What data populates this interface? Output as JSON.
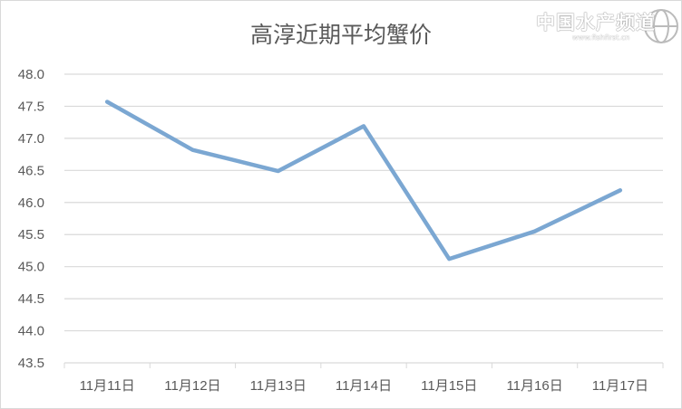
{
  "chart_data": {
    "type": "line",
    "title": "高淳近期平均蟹价",
    "categories": [
      "11月11日",
      "11月12日",
      "11月13日",
      "11月14日",
      "11月15日",
      "11月16日",
      "11月17日"
    ],
    "series": [
      {
        "values": [
          47.57,
          46.82,
          46.49,
          47.19,
          45.12,
          45.55,
          46.19
        ],
        "color": "#7BA7D2"
      }
    ],
    "ylim": [
      43.5,
      48.0
    ],
    "yticks": [
      "48.0",
      "47.5",
      "47.0",
      "46.5",
      "46.0",
      "45.5",
      "45.0",
      "44.5",
      "44.0",
      "43.5"
    ],
    "grid": true,
    "xlabel": "",
    "ylabel": ""
  },
  "watermark": {
    "text": "中国水产频道",
    "url": "www.fishfirst.cn"
  }
}
